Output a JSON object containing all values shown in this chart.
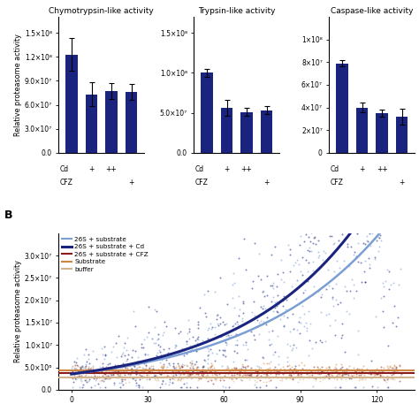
{
  "bar_color": "#1a237e",
  "bar_width": 0.6,
  "chymo": {
    "title": "Chymotrypsin-like activity",
    "values": [
      123000000.0,
      73000000.0,
      77000000.0,
      76000000.0
    ],
    "errors": [
      20000000.0,
      15000000.0,
      10000000.0,
      10000000.0
    ],
    "ylim": [
      0,
      170000000.0
    ],
    "yticks": [
      0,
      30000000.0,
      60000000.0,
      90000000.0,
      120000000.0,
      150000000.0
    ],
    "ytick_labels": [
      "0.0",
      "3.0×10⁷",
      "6.0×10⁷",
      "9.0×10⁷",
      "1.2×10⁸",
      "1.5×10⁸"
    ],
    "cd_labels": [
      "",
      "+",
      "++",
      ""
    ],
    "cfz_labels": [
      "",
      "",
      "",
      "+"
    ]
  },
  "trypsin": {
    "title": "Trypsin-like activity",
    "values": [
      100000000.0,
      56000000.0,
      51000000.0,
      53000000.0
    ],
    "errors": [
      5000000.0,
      10000000.0,
      5000000.0,
      5000000.0
    ],
    "ylim": [
      0,
      170000000.0
    ],
    "yticks": [
      0,
      50000000.0,
      100000000.0,
      150000000.0
    ],
    "ytick_labels": [
      "0.0",
      "5.0×10⁷",
      "1.0×10⁸",
      "1.5×10⁸"
    ],
    "cd_labels": [
      "",
      "+",
      "++",
      ""
    ],
    "cfz_labels": [
      "",
      "",
      "",
      "+"
    ]
  },
  "caspase": {
    "title": "Caspase-like activity",
    "values": [
      79000000.0,
      40000000.0,
      35000000.0,
      32000000.0
    ],
    "errors": [
      3000000.0,
      4000000.0,
      3000000.0,
      7000000.0
    ],
    "ylim": [
      0,
      120000000.0
    ],
    "yticks": [
      0,
      20000000.0,
      40000000.0,
      60000000.0,
      80000000.0,
      100000000.0
    ],
    "ytick_labels": [
      "0",
      "2×10⁷",
      "4×10⁷",
      "6×10⁷",
      "8×10⁷",
      "1×10⁸"
    ],
    "cd_labels": [
      "",
      "+",
      "++",
      ""
    ],
    "cfz_labels": [
      "",
      "",
      "",
      "+"
    ]
  },
  "scatter": {
    "ylabel": "Relative proteasome activity",
    "xlim": [
      -5,
      135
    ],
    "ylim": [
      0,
      35000000.0
    ],
    "yticks": [
      0,
      5000000.0,
      10000000.0,
      15000000.0,
      20000000.0,
      25000000.0,
      30000000.0
    ],
    "ytick_labels": [
      "0.0",
      "5.0×10⁶",
      "1.0×10⁷",
      "1.5×10⁷",
      "2.0×10⁷",
      "2.5×10⁷",
      "3.0×10⁷"
    ],
    "xticks": [
      0,
      30,
      60,
      90,
      120
    ],
    "legend_entries": [
      "26S + substrate",
      "26S + substrate + Cd",
      "26S + substrate + CFZ",
      "Substrate",
      "buffer"
    ],
    "line_colors": [
      "#7b9fd4",
      "#1a237e",
      "#8b1a1a",
      "#cd853f",
      "#d2b48c"
    ],
    "curve_26s_a": 3500000.0,
    "curve_26s_b": 0.019,
    "curve_cd_a": 3500000.0,
    "curve_cd_b": 0.021,
    "curve_cfz_level": 3700000.0,
    "curve_substrate_level": 4300000.0,
    "curve_buffer_level": 2800000.0
  }
}
